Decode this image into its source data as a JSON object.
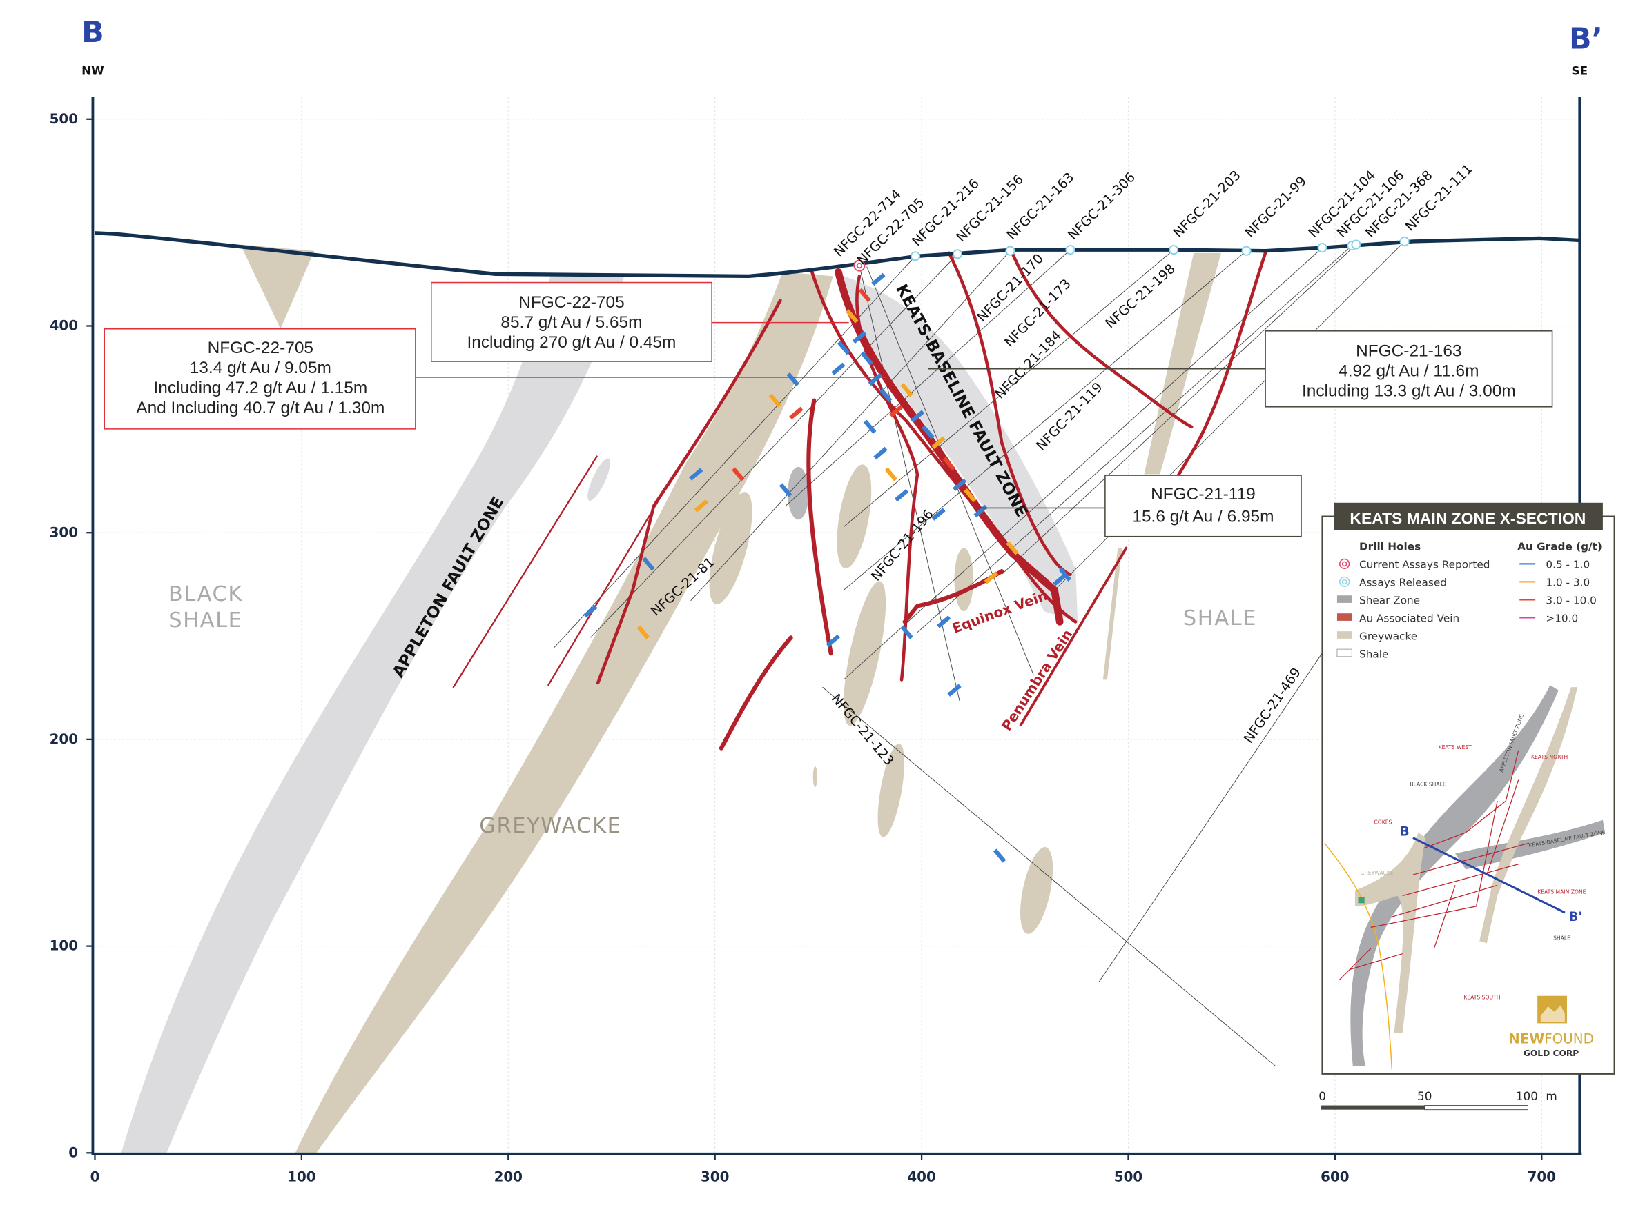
{
  "section": {
    "start_label": "B",
    "start_dir": "NW",
    "end_label": "B’",
    "end_dir": "SE"
  },
  "axes": {
    "x_ticks": [
      "0",
      "100",
      "200",
      "300",
      "400",
      "500",
      "600",
      "700"
    ],
    "y_ticks": [
      "0",
      "100",
      "200",
      "300",
      "400",
      "500"
    ],
    "x_range_m": [
      0,
      720
    ],
    "y_range_m": [
      0,
      500
    ]
  },
  "units": {
    "rock_labels": {
      "black_shale_1": "BLACK",
      "black_shale_2": "SHALE",
      "greywacke": "GREYWACKE",
      "shale": "SHALE"
    },
    "structures": {
      "appleton": "APPLETON FAULT ZONE",
      "keats_baseline": "KEATS-BASELINE FAULT ZONE",
      "equinox": "Equinox Vein",
      "penumbra": "Penumbra Vein"
    }
  },
  "drill_holes": {
    "collared": [
      "NFGC-22-714",
      "NFGC-22-705",
      "NFGC-21-216",
      "NFGC-21-156",
      "NFGC-21-163",
      "NFGC-21-306",
      "NFGC-21-203",
      "NFGC-21-99",
      "NFGC-21-104",
      "NFGC-21-106",
      "NFGC-21-368",
      "NFGC-21-111"
    ],
    "traces": [
      "NFGC-21-170",
      "NFGC-21-173",
      "NFGC-21-184",
      "NFGC-21-119",
      "NFGC-21-198",
      "NFGC-21-196",
      "NFGC-21-81",
      "NFGC-21-123",
      "NFGC-21-469"
    ]
  },
  "callouts": [
    {
      "hole": "NFGC-22-705",
      "lines": [
        "85.7 g/t Au / 5.65m",
        "Including 270 g/t Au / 0.45m"
      ],
      "color": "#e0303a"
    },
    {
      "hole": "NFGC-22-705",
      "lines": [
        "13.4 g/t Au / 9.05m",
        "Including 47.2 g/t Au / 1.15m",
        "And Including 40.7 g/t Au / 1.30m"
      ],
      "color": "#e0303a"
    },
    {
      "hole": "NFGC-21-163",
      "lines": [
        "4.92 g/t Au / 11.6m",
        "Including 13.3 g/t Au / 3.00m"
      ],
      "color": "#4a473e"
    },
    {
      "hole": "NFGC-21-119",
      "lines": [
        "15.6 g/t Au / 6.95m"
      ],
      "color": "#4a473e"
    }
  ],
  "legend": {
    "title": "KEATS MAIN ZONE X-SECTION",
    "drill_holes_heading": "Drill Holes",
    "items": [
      "Current Assays Reported",
      "Assays Released",
      "Shear Zone",
      "Au Associated Vein",
      "Greywacke",
      "Shale"
    ],
    "grade_heading": "Au Grade (g/t)",
    "grades": [
      {
        "label": "0.5 - 1.0",
        "color": "#3b7fd1"
      },
      {
        "label": "1.0 - 3.0",
        "color": "#f5a623"
      },
      {
        "label": "3.0 - 10.0",
        "color": "#e8452c"
      },
      {
        "label": ">10.0",
        "color": "#d6479a"
      }
    ]
  },
  "inset_map": {
    "labels": [
      "KEATS WEST",
      "KEATS NORTH",
      "BLACK SHALE",
      "COKES",
      "GREYWACKE",
      "APPLETON FAULT ZONE",
      "KEATS-BASELINE FAULT ZONE",
      "KEATS MAIN ZONE",
      "SHALE",
      "KEATS SOUTH"
    ],
    "section_start": "B",
    "section_end": "B'",
    "logo_1": "NEW",
    "logo_2": "FOUND",
    "logo_3": "GOLD CORP"
  },
  "scale_bar": {
    "labels": [
      "0",
      "50",
      "100"
    ],
    "unit": "m"
  },
  "colors": {
    "frame": "#14304f",
    "vein": "#b3202a",
    "shear": "#d9dadc",
    "greywacke": "#d5ccba",
    "accent_blue": "#2a45a8"
  }
}
